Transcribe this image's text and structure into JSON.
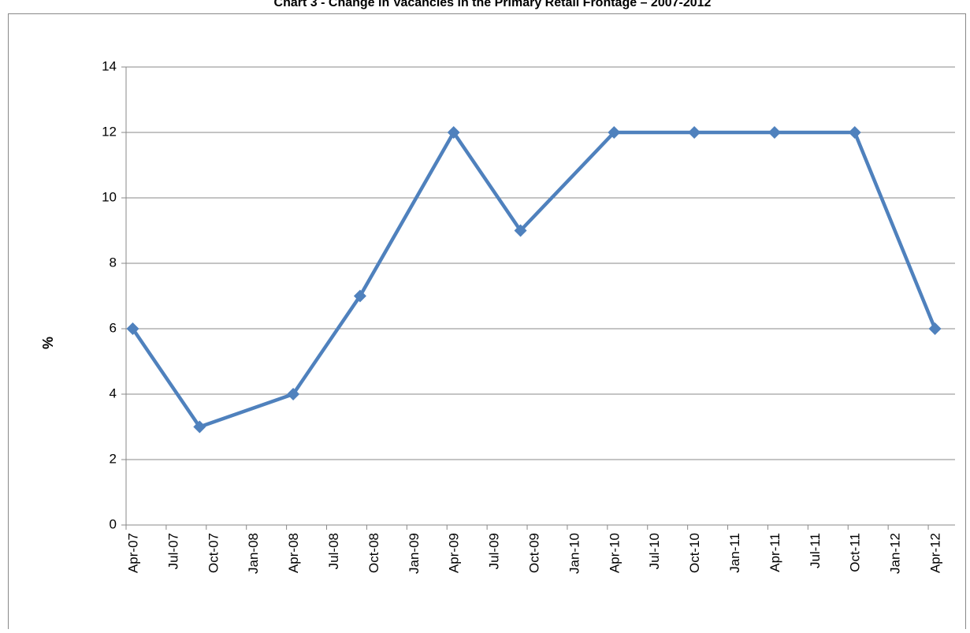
{
  "chart_data": {
    "type": "line",
    "title": "Chart 3 - Change in Vacancies in the Primary Retail Frontage – 2007-2012",
    "y_label": "%",
    "x": [
      "2007-04",
      "2007-09",
      "2008-04",
      "2008-09",
      "2009-04",
      "2009-09",
      "2010-04",
      "2010-10",
      "2011-04",
      "2011-10",
      "2012-04"
    ],
    "series": [
      {
        "name": "Vacancies",
        "color": "#4f81bd",
        "values": [
          6,
          3,
          4,
          7,
          12,
          9,
          12,
          12,
          12,
          12,
          6
        ]
      }
    ],
    "xlim": [
      "2007-04",
      "2012-06"
    ],
    "xticks": [
      {
        "value": "2007-04",
        "label": "Apr-07"
      },
      {
        "value": "2007-07",
        "label": "Jul-07"
      },
      {
        "value": "2007-10",
        "label": "Oct-07"
      },
      {
        "value": "2008-01",
        "label": "Jan-08"
      },
      {
        "value": "2008-04",
        "label": "Apr-08"
      },
      {
        "value": "2008-07",
        "label": "Jul-08"
      },
      {
        "value": "2008-10",
        "label": "Oct-08"
      },
      {
        "value": "2009-01",
        "label": "Jan-09"
      },
      {
        "value": "2009-04",
        "label": "Apr-09"
      },
      {
        "value": "2009-07",
        "label": "Jul-09"
      },
      {
        "value": "2009-10",
        "label": "Oct-09"
      },
      {
        "value": "2010-01",
        "label": "Jan-10"
      },
      {
        "value": "2010-04",
        "label": "Apr-10"
      },
      {
        "value": "2010-07",
        "label": "Jul-10"
      },
      {
        "value": "2010-10",
        "label": "Oct-10"
      },
      {
        "value": "2011-01",
        "label": "Jan-11"
      },
      {
        "value": "2011-04",
        "label": "Apr-11"
      },
      {
        "value": "2011-07",
        "label": "Jul-11"
      },
      {
        "value": "2011-10",
        "label": "Oct-11"
      },
      {
        "value": "2012-01",
        "label": "Jan-12"
      },
      {
        "value": "2012-04",
        "label": "Apr-12"
      }
    ],
    "ylim": [
      0,
      14
    ],
    "yticks": [
      0,
      2,
      4,
      6,
      8,
      10,
      12,
      14
    ],
    "grid": true,
    "marker": "diamond"
  }
}
